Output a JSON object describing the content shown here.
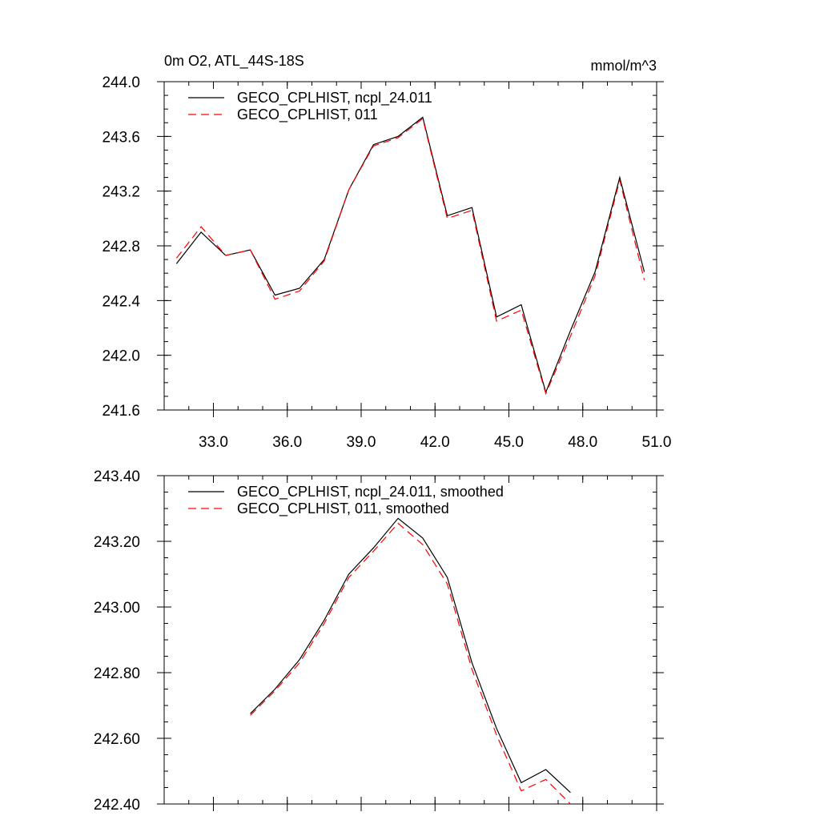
{
  "chart_data": [
    {
      "type": "line",
      "title": "0m O2, ATL_44S-18S",
      "units": "mmol/m^3",
      "xlim": [
        31.0,
        51.0
      ],
      "ylim": [
        241.6,
        244.0
      ],
      "xticks": [
        33.0,
        36.0,
        39.0,
        42.0,
        45.0,
        48.0,
        51.0
      ],
      "xtick_labels": [
        "33.0",
        "36.0",
        "39.0",
        "42.0",
        "45.0",
        "48.0",
        "51.0"
      ],
      "yticks": [
        241.6,
        242.0,
        242.4,
        242.8,
        243.2,
        243.6,
        244.0
      ],
      "ytick_labels": [
        "241.6",
        "242.0",
        "242.4",
        "242.8",
        "243.2",
        "243.6",
        "244.0"
      ],
      "legend_position": "top-left",
      "series": [
        {
          "name": "GECO_CPLHIST, ncpl_24.011",
          "color": "#000000",
          "style": "solid",
          "x": [
            31.5,
            32.5,
            33.5,
            34.5,
            35.5,
            36.5,
            37.5,
            38.5,
            39.5,
            40.5,
            41.5,
            42.5,
            43.5,
            44.5,
            45.5,
            46.5,
            47.5,
            48.5,
            49.5,
            50.5
          ],
          "values": [
            242.67,
            242.9,
            242.73,
            242.77,
            242.44,
            242.49,
            242.7,
            243.21,
            243.54,
            243.6,
            243.74,
            243.02,
            243.08,
            242.28,
            242.37,
            241.73,
            242.18,
            242.61,
            243.3,
            242.61
          ]
        },
        {
          "name": "GECO_CPLHIST, 011",
          "color": "#ff0000",
          "style": "dashed",
          "x": [
            31.5,
            32.5,
            33.5,
            34.5,
            35.5,
            36.5,
            37.5,
            38.5,
            39.5,
            40.5,
            41.5,
            42.5,
            43.5,
            44.5,
            45.5,
            46.5,
            47.5,
            48.5,
            49.5,
            50.5
          ],
          "values": [
            242.71,
            242.94,
            242.73,
            242.77,
            242.41,
            242.47,
            242.69,
            243.21,
            243.53,
            243.59,
            243.73,
            243.0,
            243.06,
            242.25,
            242.33,
            241.72,
            242.14,
            242.58,
            243.28,
            242.55
          ]
        }
      ]
    },
    {
      "type": "line",
      "xlim": [
        31.0,
        51.0
      ],
      "ylim": [
        242.4,
        243.4
      ],
      "xticks": [
        33.0,
        36.0,
        39.0,
        42.0,
        45.0,
        48.0,
        51.0
      ],
      "yticks": [
        242.4,
        242.6,
        242.8,
        243.0,
        243.2,
        243.4
      ],
      "ytick_labels": [
        "242.40",
        "242.60",
        "242.80",
        "243.00",
        "243.20",
        "243.40"
      ],
      "legend_position": "top-left",
      "series": [
        {
          "name": "GECO_CPLHIST, ncpl_24.011, smoothed",
          "color": "#000000",
          "style": "solid",
          "x": [
            34.5,
            35.5,
            36.5,
            37.5,
            38.5,
            39.5,
            40.5,
            41.5,
            42.5,
            43.5,
            44.5,
            45.5,
            46.5,
            47.5
          ],
          "values": [
            242.675,
            242.75,
            242.84,
            242.96,
            243.1,
            243.18,
            243.27,
            243.21,
            243.09,
            242.83,
            242.63,
            242.465,
            242.505,
            242.435
          ]
        },
        {
          "name": "GECO_CPLHIST, 011, smoothed",
          "color": "#ff0000",
          "style": "dashed",
          "x": [
            34.5,
            35.5,
            36.5,
            37.5,
            38.5,
            39.5,
            40.5,
            41.5,
            42.5,
            43.5,
            44.5,
            45.5,
            46.5,
            47.5
          ],
          "values": [
            242.67,
            242.745,
            242.83,
            242.95,
            243.09,
            243.17,
            243.255,
            243.19,
            243.07,
            242.81,
            242.61,
            242.44,
            242.475,
            242.4
          ]
        }
      ]
    }
  ]
}
